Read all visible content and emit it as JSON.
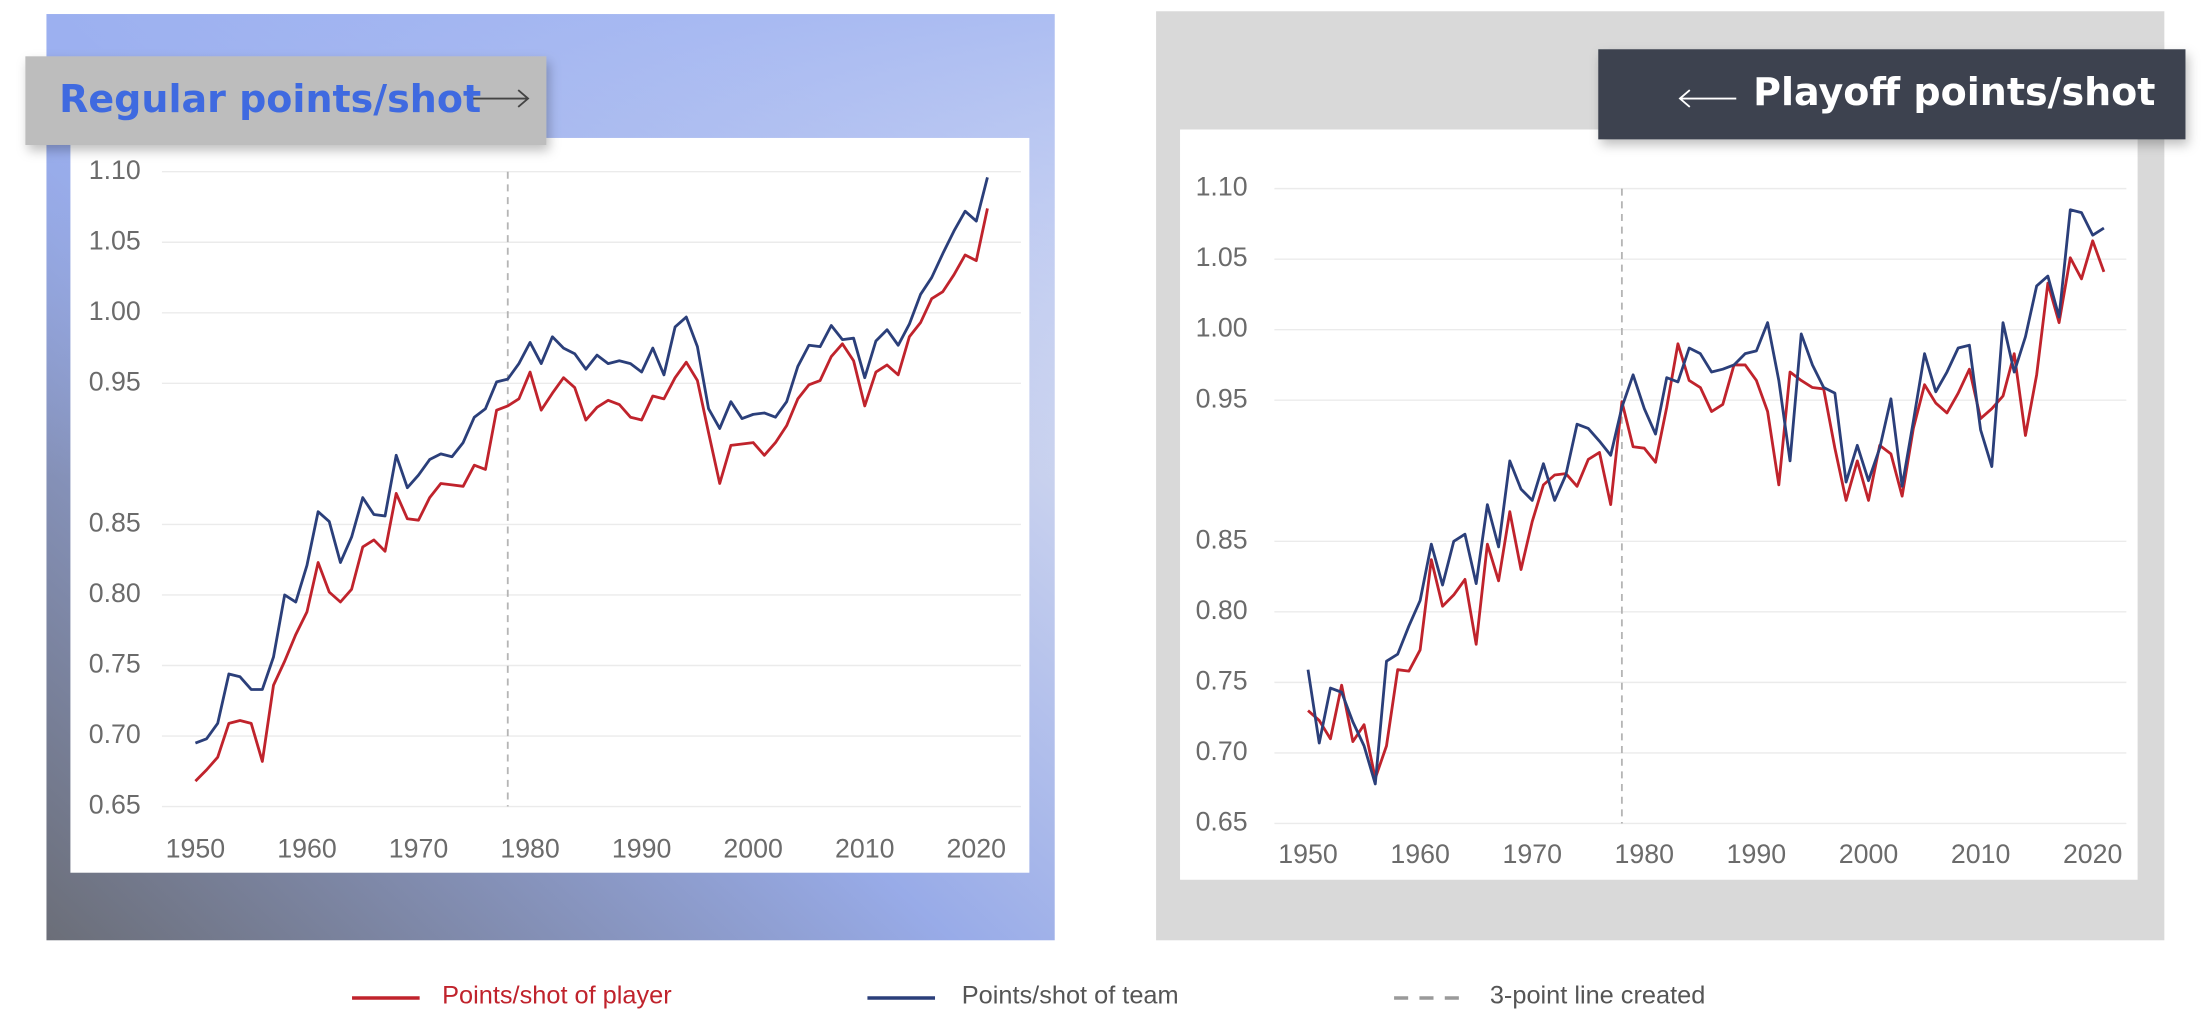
{
  "chart_data": [
    {
      "type": "line",
      "title": "Regular points/shot",
      "x": [
        1950,
        1951,
        1952,
        1953,
        1954,
        1955,
        1956,
        1957,
        1958,
        1959,
        1960,
        1961,
        1962,
        1963,
        1964,
        1965,
        1966,
        1967,
        1968,
        1969,
        1970,
        1971,
        1972,
        1973,
        1974,
        1975,
        1976,
        1977,
        1978,
        1979,
        1980,
        1981,
        1982,
        1983,
        1984,
        1985,
        1986,
        1987,
        1988,
        1989,
        1990,
        1991,
        1992,
        1993,
        1994,
        1995,
        1996,
        1997,
        1998,
        1999,
        2000,
        2001,
        2002,
        2003,
        2004,
        2005,
        2006,
        2007,
        2008,
        2009,
        2010,
        2011,
        2012,
        2013,
        2014,
        2015,
        2016,
        2017,
        2018,
        2019,
        2020,
        2021
      ],
      "series": [
        {
          "name": "Points/shot of player",
          "color": "#c0232c",
          "values": [
            0.668,
            0.676,
            0.685,
            0.709,
            0.711,
            0.709,
            0.682,
            0.736,
            0.753,
            0.772,
            0.788,
            0.823,
            0.802,
            0.795,
            0.804,
            0.834,
            0.839,
            0.831,
            0.872,
            0.854,
            0.853,
            0.869,
            0.879,
            0.878,
            0.877,
            0.892,
            0.889,
            0.931,
            0.934,
            0.939,
            0.958,
            0.931,
            0.943,
            0.954,
            0.947,
            0.924,
            0.933,
            0.938,
            0.935,
            0.926,
            0.924,
            0.941,
            0.939,
            0.954,
            0.965,
            0.952,
            0.915,
            0.879,
            0.906,
            0.907,
            0.908,
            0.899,
            0.908,
            0.92,
            0.939,
            0.949,
            0.952,
            0.969,
            0.978,
            0.966,
            0.934,
            0.958,
            0.963,
            0.956,
            0.983,
            0.993,
            1.01,
            1.015,
            1.027,
            1.041,
            1.037,
            1.074
          ]
        },
        {
          "name": "Points/shot of team",
          "color": "#2b3f7a",
          "values": [
            0.695,
            0.698,
            0.709,
            0.744,
            0.742,
            0.733,
            0.733,
            0.756,
            0.8,
            0.795,
            0.821,
            0.859,
            0.852,
            0.823,
            0.841,
            0.869,
            0.857,
            0.856,
            0.899,
            0.876,
            0.885,
            0.896,
            0.9,
            0.898,
            0.908,
            0.926,
            0.932,
            0.951,
            0.953,
            0.964,
            0.979,
            0.964,
            0.983,
            0.975,
            0.971,
            0.96,
            0.97,
            0.964,
            0.966,
            0.964,
            0.958,
            0.975,
            0.956,
            0.99,
            0.997,
            0.976,
            0.932,
            0.918,
            0.937,
            0.925,
            0.928,
            0.929,
            0.926,
            0.937,
            0.962,
            0.977,
            0.976,
            0.991,
            0.981,
            0.982,
            0.954,
            0.98,
            0.988,
            0.977,
            0.992,
            1.013,
            1.025,
            1.042,
            1.058,
            1.072,
            1.065,
            1.096
          ]
        }
      ],
      "annotation": {
        "x": 1978,
        "label": "3-point line created"
      },
      "xlim": [
        1947,
        2024
      ],
      "xticks": [
        1950,
        1960,
        1970,
        1980,
        1990,
        2000,
        2010,
        2020
      ],
      "ylim": [
        0.65,
        1.1
      ],
      "yticks": [
        0.65,
        {
          "value": 0.7,
          "label": "0.70"
        },
        0.75,
        {
          "value": 0.8,
          "label": "0.80"
        },
        0.85,
        0.95,
        {
          "value": 1,
          "label": "1.00"
        },
        1.05,
        {
          "value": 1.1,
          "label": "1.10"
        }
      ],
      "grid": true
    },
    {
      "type": "line",
      "title": "Playoff points/shot",
      "x": [
        1950,
        1951,
        1952,
        1953,
        1954,
        1955,
        1956,
        1957,
        1958,
        1959,
        1960,
        1961,
        1962,
        1963,
        1964,
        1965,
        1966,
        1967,
        1968,
        1969,
        1970,
        1971,
        1972,
        1973,
        1974,
        1975,
        1976,
        1977,
        1978,
        1979,
        1980,
        1981,
        1982,
        1983,
        1984,
        1985,
        1986,
        1987,
        1988,
        1989,
        1990,
        1991,
        1992,
        1993,
        1994,
        1995,
        1996,
        1997,
        1998,
        1999,
        2000,
        2001,
        2002,
        2003,
        2004,
        2005,
        2006,
        2007,
        2008,
        2009,
        2010,
        2011,
        2012,
        2013,
        2014,
        2015,
        2016,
        2017,
        2018,
        2019,
        2020,
        2021
      ],
      "series": [
        {
          "name": "Points/shot of player",
          "color": "#c0232c",
          "values": [
            0.73,
            0.723,
            0.71,
            0.748,
            0.708,
            0.72,
            0.682,
            0.705,
            0.759,
            0.758,
            0.773,
            0.837,
            0.804,
            0.812,
            0.823,
            0.777,
            0.848,
            0.822,
            0.871,
            0.83,
            0.864,
            0.89,
            0.897,
            0.898,
            0.889,
            0.908,
            0.913,
            0.876,
            0.949,
            0.917,
            0.916,
            0.906,
            0.945,
            0.99,
            0.964,
            0.959,
            0.942,
            0.947,
            0.975,
            0.975,
            0.964,
            0.942,
            0.89,
            0.97,
            0.964,
            0.959,
            0.958,
            0.916,
            0.879,
            0.907,
            0.879,
            0.918,
            0.912,
            0.882,
            0.93,
            0.961,
            0.948,
            0.941,
            0.955,
            0.972,
            0.937,
            0.944,
            0.953,
            0.983,
            0.925,
            0.968,
            1.033,
            1.005,
            1.051,
            1.036,
            1.063,
            1.041
          ]
        },
        {
          "name": "Points/shot of team",
          "color": "#2b3f7a",
          "values": [
            0.759,
            0.707,
            0.746,
            0.743,
            0.722,
            0.705,
            0.678,
            0.765,
            0.77,
            0.79,
            0.808,
            0.848,
            0.819,
            0.85,
            0.855,
            0.82,
            0.876,
            0.846,
            0.907,
            0.887,
            0.879,
            0.905,
            0.879,
            0.897,
            0.933,
            0.93,
            0.921,
            0.911,
            0.945,
            0.968,
            0.944,
            0.926,
            0.966,
            0.963,
            0.987,
            0.983,
            0.97,
            0.972,
            0.975,
            0.983,
            0.985,
            1.005,
            0.964,
            0.907,
            0.997,
            0.975,
            0.959,
            0.955,
            0.892,
            0.918,
            0.893,
            0.916,
            0.951,
            0.889,
            0.935,
            0.983,
            0.956,
            0.97,
            0.987,
            0.989,
            0.929,
            0.903,
            1.005,
            0.97,
            0.995,
            1.031,
            1.038,
            1.009,
            1.085,
            1.083,
            1.067,
            1.072
          ]
        }
      ],
      "annotation": {
        "x": 1978
      },
      "xlim": [
        1947,
        2023
      ],
      "xticks": [
        1950,
        1960,
        1970,
        1980,
        1990,
        2000,
        2010,
        2020
      ],
      "ylim": [
        0.65,
        1.1
      ],
      "yticks": [
        0.65,
        {
          "value": 0.7,
          "label": "0.70"
        },
        0.75,
        {
          "value": 0.8,
          "label": "0.80"
        },
        0.85,
        0.95,
        {
          "value": 1,
          "label": "1.00"
        },
        1.05,
        {
          "value": 1.1,
          "label": "1.10"
        }
      ],
      "grid": true
    }
  ]
}
